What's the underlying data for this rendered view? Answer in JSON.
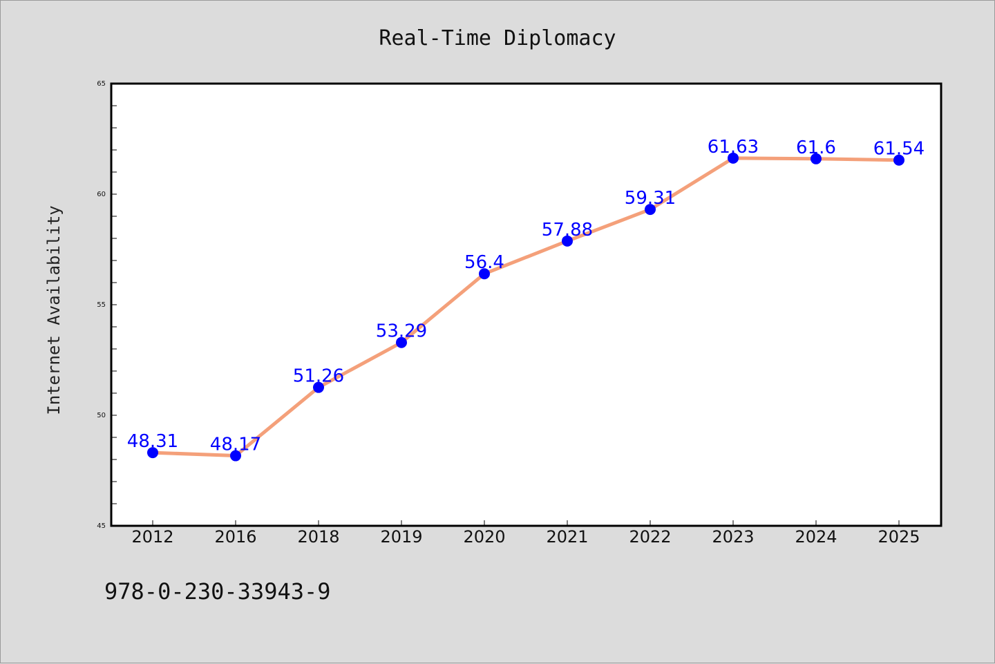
{
  "chart_data": {
    "type": "line",
    "title": "Real-Time Diplomacy",
    "xlabel": "",
    "ylabel": "Internet Availability",
    "categories": [
      "2012",
      "2016",
      "2018",
      "2019",
      "2020",
      "2021",
      "2022",
      "2023",
      "2024",
      "2025"
    ],
    "series": [
      {
        "values": [
          48.31,
          48.17,
          51.26,
          53.29,
          56.4,
          57.88,
          59.31,
          61.63,
          61.6,
          61.54
        ],
        "data_labels": [
          "48.31",
          "48.17",
          "51.26",
          "53.29",
          "56.4",
          "57.88",
          "59.31",
          "61.63",
          "61.6",
          "61.54"
        ],
        "line_color": "#f4a07a",
        "marker_color": "#0000ff"
      }
    ],
    "ylim": [
      45,
      65
    ],
    "y_ticks": [
      "45",
      "50",
      "55",
      "60",
      "65"
    ],
    "grid": false,
    "legend": "none"
  },
  "footer": {
    "isbn": "978-0-230-33943-9"
  },
  "colors": {
    "background": "#dcdcdc",
    "plot_background": "#ffffff",
    "line": "#f4a07a",
    "marker": "#0000ff",
    "data_label": "#0000ff"
  }
}
